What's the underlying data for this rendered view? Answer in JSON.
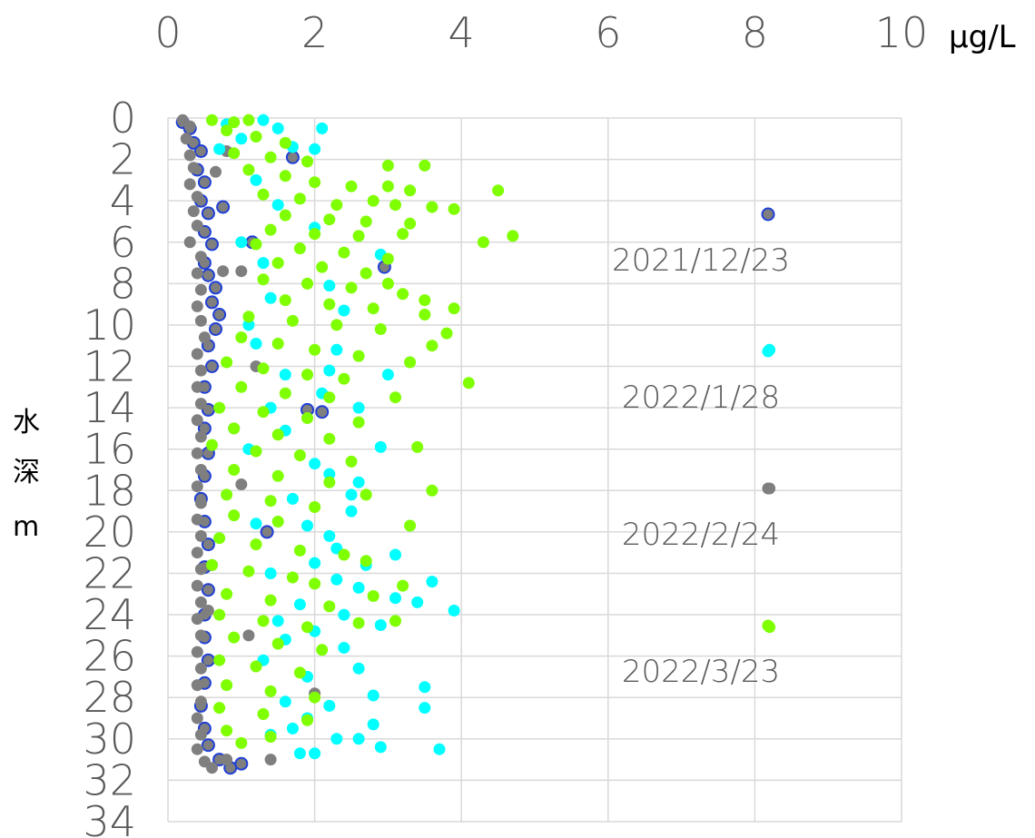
{
  "chart_data": {
    "type": "scatter",
    "x_unit": "μg/L",
    "y_label_chars": [
      "水",
      "深",
      "m"
    ],
    "x_ticks": [
      "0",
      "2",
      "4",
      "6",
      "8",
      "10"
    ],
    "y_ticks": [
      "0",
      "2",
      "4",
      "6",
      "8",
      "10",
      "12",
      "14",
      "16",
      "18",
      "20",
      "22",
      "24",
      "26",
      "28",
      "30",
      "32",
      "34"
    ],
    "xlim": [
      0,
      10
    ],
    "ylim": [
      0,
      34
    ],
    "y_inverted": true,
    "x_axis_position": "top",
    "grid": true,
    "legend_position": "right",
    "series": [
      {
        "name": "2021/12/23",
        "color": "#7f7f7f",
        "edge_color": "#1f3fd6",
        "points": [
          [
            0.2,
            0.2
          ],
          [
            0.3,
            0.5
          ],
          [
            0.35,
            1.2
          ],
          [
            0.45,
            1.6
          ],
          [
            0.4,
            2.5
          ],
          [
            0.5,
            3.1
          ],
          [
            0.45,
            4.0
          ],
          [
            0.55,
            4.6
          ],
          [
            0.5,
            5.5
          ],
          [
            0.6,
            6.1
          ],
          [
            0.5,
            7.0
          ],
          [
            0.55,
            7.6
          ],
          [
            0.65,
            8.2
          ],
          [
            0.6,
            8.9
          ],
          [
            0.7,
            9.5
          ],
          [
            0.65,
            10.2
          ],
          [
            0.55,
            11.0
          ],
          [
            0.6,
            12.0
          ],
          [
            0.5,
            13.0
          ],
          [
            0.55,
            14.1
          ],
          [
            0.5,
            15.0
          ],
          [
            0.55,
            16.2
          ],
          [
            0.5,
            17.3
          ],
          [
            0.45,
            18.4
          ],
          [
            0.5,
            19.5
          ],
          [
            0.55,
            20.6
          ],
          [
            0.5,
            21.7
          ],
          [
            0.55,
            22.8
          ],
          [
            0.5,
            24.0
          ],
          [
            0.5,
            25.1
          ],
          [
            0.55,
            26.2
          ],
          [
            0.5,
            27.3
          ],
          [
            0.45,
            28.4
          ],
          [
            0.5,
            29.5
          ],
          [
            0.55,
            30.3
          ],
          [
            0.7,
            31.0
          ],
          [
            0.85,
            31.4
          ],
          [
            1.0,
            31.2
          ],
          [
            1.7,
            1.9
          ],
          [
            1.15,
            6.0
          ],
          [
            0.75,
            4.3
          ],
          [
            2.95,
            7.2
          ],
          [
            1.9,
            14.1
          ],
          [
            1.35,
            20.0
          ],
          [
            2.1,
            14.2
          ]
        ]
      },
      {
        "name": "2022/1/28",
        "color": "#00ffff",
        "points": [
          [
            0.8,
            0.3
          ],
          [
            1.3,
            0.1
          ],
          [
            1.5,
            0.5
          ],
          [
            2.1,
            0.5
          ],
          [
            1.0,
            1.0
          ],
          [
            1.7,
            1.4
          ],
          [
            2.0,
            1.5
          ],
          [
            0.7,
            1.5
          ],
          [
            1.2,
            3.0
          ],
          [
            1.5,
            4.2
          ],
          [
            2.0,
            5.3
          ],
          [
            1.0,
            6.0
          ],
          [
            1.3,
            7.0
          ],
          [
            2.9,
            6.6
          ],
          [
            2.2,
            8.1
          ],
          [
            1.4,
            8.7
          ],
          [
            2.4,
            9.3
          ],
          [
            1.1,
            10.0
          ],
          [
            1.2,
            10.9
          ],
          [
            2.3,
            11.2
          ],
          [
            1.6,
            12.4
          ],
          [
            2.2,
            12.2
          ],
          [
            3.0,
            12.4
          ],
          [
            2.1,
            13.3
          ],
          [
            1.4,
            14.0
          ],
          [
            2.6,
            14.0
          ],
          [
            1.6,
            15.1
          ],
          [
            2.9,
            15.9
          ],
          [
            1.1,
            16.0
          ],
          [
            2.0,
            16.7
          ],
          [
            2.2,
            17.2
          ],
          [
            2.6,
            17.6
          ],
          [
            1.7,
            18.4
          ],
          [
            2.5,
            18.2
          ],
          [
            2.5,
            19.0
          ],
          [
            1.2,
            19.6
          ],
          [
            1.9,
            19.7
          ],
          [
            2.2,
            20.2
          ],
          [
            2.3,
            20.8
          ],
          [
            3.1,
            21.1
          ],
          [
            2.0,
            21.5
          ],
          [
            2.7,
            21.6
          ],
          [
            1.4,
            22.0
          ],
          [
            2.3,
            22.3
          ],
          [
            2.6,
            22.7
          ],
          [
            3.6,
            22.4
          ],
          [
            3.1,
            23.2
          ],
          [
            3.4,
            23.4
          ],
          [
            1.8,
            23.5
          ],
          [
            2.4,
            24.0
          ],
          [
            3.9,
            23.8
          ],
          [
            1.5,
            24.3
          ],
          [
            2.0,
            24.8
          ],
          [
            2.9,
            24.5
          ],
          [
            1.6,
            25.2
          ],
          [
            2.4,
            25.6
          ],
          [
            1.3,
            26.2
          ],
          [
            2.6,
            26.6
          ],
          [
            1.9,
            27.0
          ],
          [
            3.5,
            27.5
          ],
          [
            2.8,
            27.9
          ],
          [
            1.6,
            28.2
          ],
          [
            2.2,
            28.4
          ],
          [
            3.5,
            28.5
          ],
          [
            1.9,
            29.0
          ],
          [
            2.8,
            29.3
          ],
          [
            1.4,
            29.8
          ],
          [
            2.6,
            30.0
          ],
          [
            2.0,
            30.7
          ],
          [
            1.8,
            30.7
          ],
          [
            2.9,
            30.4
          ],
          [
            3.7,
            30.5
          ],
          [
            2.3,
            30.0
          ],
          [
            1.7,
            29.5
          ],
          [
            8.2,
            11.2
          ]
        ]
      },
      {
        "name": "2022/2/24",
        "color": "#7f7f7f",
        "points": [
          [
            0.2,
            0.1
          ],
          [
            0.3,
            0.4
          ],
          [
            0.25,
            1.0
          ],
          [
            0.3,
            1.8
          ],
          [
            0.35,
            2.4
          ],
          [
            0.3,
            3.2
          ],
          [
            0.4,
            3.8
          ],
          [
            0.35,
            4.5
          ],
          [
            0.4,
            5.2
          ],
          [
            0.3,
            6.0
          ],
          [
            0.45,
            6.7
          ],
          [
            0.4,
            7.5
          ],
          [
            0.45,
            8.3
          ],
          [
            0.4,
            9.1
          ],
          [
            0.45,
            9.8
          ],
          [
            0.5,
            10.6
          ],
          [
            0.4,
            11.4
          ],
          [
            0.45,
            12.2
          ],
          [
            0.4,
            13.0
          ],
          [
            0.45,
            13.8
          ],
          [
            0.4,
            14.6
          ],
          [
            0.45,
            15.4
          ],
          [
            0.4,
            16.2
          ],
          [
            0.45,
            17.0
          ],
          [
            0.4,
            17.8
          ],
          [
            0.45,
            18.6
          ],
          [
            0.4,
            19.4
          ],
          [
            0.45,
            20.2
          ],
          [
            0.4,
            21.0
          ],
          [
            0.45,
            21.8
          ],
          [
            0.4,
            22.6
          ],
          [
            0.45,
            23.4
          ],
          [
            0.4,
            24.2
          ],
          [
            0.45,
            25.0
          ],
          [
            0.4,
            25.8
          ],
          [
            0.45,
            26.6
          ],
          [
            0.4,
            27.4
          ],
          [
            0.45,
            28.2
          ],
          [
            0.4,
            29.0
          ],
          [
            0.45,
            29.8
          ],
          [
            0.4,
            30.5
          ],
          [
            0.5,
            31.1
          ],
          [
            0.6,
            31.4
          ],
          [
            0.8,
            31.0
          ],
          [
            1.4,
            31.0
          ],
          [
            0.65,
            2.6
          ],
          [
            0.8,
            1.6
          ],
          [
            0.75,
            7.4
          ],
          [
            1.0,
            7.4
          ],
          [
            0.9,
            15.0
          ],
          [
            1.2,
            12.0
          ],
          [
            1.0,
            17.7
          ],
          [
            2.0,
            27.8
          ],
          [
            1.1,
            25.0
          ],
          [
            0.6,
            21.6
          ],
          [
            0.55,
            23.8
          ],
          [
            8.2,
            17.9
          ]
        ]
      },
      {
        "name": "2022/3/23",
        "color": "#7fff00",
        "points": [
          [
            0.6,
            0.1
          ],
          [
            0.9,
            0.2
          ],
          [
            1.1,
            0.1
          ],
          [
            0.8,
            0.6
          ],
          [
            1.2,
            0.9
          ],
          [
            1.6,
            1.2
          ],
          [
            0.9,
            1.7
          ],
          [
            1.4,
            1.9
          ],
          [
            1.9,
            2.1
          ],
          [
            1.1,
            2.5
          ],
          [
            3.0,
            2.3
          ],
          [
            3.5,
            2.3
          ],
          [
            1.6,
            2.8
          ],
          [
            2.0,
            3.1
          ],
          [
            2.5,
            3.3
          ],
          [
            3.0,
            3.3
          ],
          [
            3.3,
            3.5
          ],
          [
            4.5,
            3.5
          ],
          [
            1.3,
            3.7
          ],
          [
            1.8,
            3.9
          ],
          [
            2.3,
            4.2
          ],
          [
            2.8,
            4.0
          ],
          [
            3.1,
            4.2
          ],
          [
            3.6,
            4.3
          ],
          [
            3.9,
            4.4
          ],
          [
            1.6,
            4.7
          ],
          [
            2.2,
            4.9
          ],
          [
            2.7,
            5.0
          ],
          [
            3.3,
            5.1
          ],
          [
            1.4,
            5.4
          ],
          [
            2.0,
            5.6
          ],
          [
            2.6,
            5.7
          ],
          [
            3.2,
            5.6
          ],
          [
            4.7,
            5.7
          ],
          [
            4.3,
            6.0
          ],
          [
            1.2,
            6.1
          ],
          [
            1.8,
            6.3
          ],
          [
            2.4,
            6.5
          ],
          [
            3.0,
            6.8
          ],
          [
            1.5,
            7.0
          ],
          [
            2.1,
            7.2
          ],
          [
            2.7,
            7.5
          ],
          [
            1.3,
            7.8
          ],
          [
            1.9,
            8.0
          ],
          [
            2.5,
            8.2
          ],
          [
            3.0,
            8.0
          ],
          [
            3.2,
            8.5
          ],
          [
            3.5,
            8.8
          ],
          [
            1.6,
            8.8
          ],
          [
            2.2,
            9.0
          ],
          [
            2.8,
            9.2
          ],
          [
            3.5,
            9.5
          ],
          [
            3.9,
            9.2
          ],
          [
            1.1,
            9.6
          ],
          [
            1.7,
            9.8
          ],
          [
            2.3,
            10.0
          ],
          [
            2.9,
            10.2
          ],
          [
            3.8,
            10.4
          ],
          [
            3.6,
            11.0
          ],
          [
            1.0,
            10.6
          ],
          [
            1.5,
            10.9
          ],
          [
            2.0,
            11.2
          ],
          [
            2.6,
            11.5
          ],
          [
            3.3,
            11.8
          ],
          [
            0.8,
            11.8
          ],
          [
            1.3,
            12.1
          ],
          [
            1.9,
            12.4
          ],
          [
            2.4,
            12.6
          ],
          [
            4.1,
            12.8
          ],
          [
            1.0,
            13.0
          ],
          [
            1.6,
            13.3
          ],
          [
            2.2,
            13.5
          ],
          [
            3.1,
            13.5
          ],
          [
            0.7,
            14.0
          ],
          [
            1.3,
            14.2
          ],
          [
            1.9,
            14.5
          ],
          [
            2.6,
            14.7
          ],
          [
            0.9,
            15.0
          ],
          [
            1.5,
            15.3
          ],
          [
            2.2,
            15.5
          ],
          [
            3.4,
            15.9
          ],
          [
            0.6,
            15.8
          ],
          [
            1.2,
            16.1
          ],
          [
            1.8,
            16.3
          ],
          [
            2.5,
            16.6
          ],
          [
            0.9,
            17.0
          ],
          [
            1.5,
            17.3
          ],
          [
            2.2,
            17.6
          ],
          [
            3.6,
            18.0
          ],
          [
            0.8,
            18.2
          ],
          [
            1.4,
            18.5
          ],
          [
            2.0,
            18.8
          ],
          [
            2.7,
            18.2
          ],
          [
            0.9,
            19.2
          ],
          [
            1.5,
            19.5
          ],
          [
            3.3,
            19.7
          ],
          [
            0.7,
            20.3
          ],
          [
            1.2,
            20.6
          ],
          [
            1.8,
            20.9
          ],
          [
            2.4,
            21.1
          ],
          [
            0.6,
            21.6
          ],
          [
            1.1,
            21.9
          ],
          [
            1.7,
            22.2
          ],
          [
            2.7,
            21.4
          ],
          [
            2.0,
            22.5
          ],
          [
            0.8,
            23.0
          ],
          [
            1.4,
            23.3
          ],
          [
            2.2,
            23.6
          ],
          [
            3.2,
            22.6
          ],
          [
            2.8,
            23.1
          ],
          [
            0.7,
            24.0
          ],
          [
            1.3,
            24.3
          ],
          [
            1.9,
            24.6
          ],
          [
            2.6,
            24.4
          ],
          [
            3.1,
            24.3
          ],
          [
            0.9,
            25.1
          ],
          [
            1.5,
            25.4
          ],
          [
            2.1,
            25.7
          ],
          [
            0.7,
            26.2
          ],
          [
            1.2,
            26.5
          ],
          [
            1.8,
            26.8
          ],
          [
            0.8,
            27.4
          ],
          [
            1.4,
            27.7
          ],
          [
            2.0,
            28.0
          ],
          [
            0.7,
            28.5
          ],
          [
            1.3,
            28.8
          ],
          [
            1.9,
            29.1
          ],
          [
            0.8,
            29.6
          ],
          [
            1.4,
            29.9
          ],
          [
            1.0,
            30.2
          ],
          [
            8.2,
            24.6
          ]
        ]
      }
    ]
  }
}
